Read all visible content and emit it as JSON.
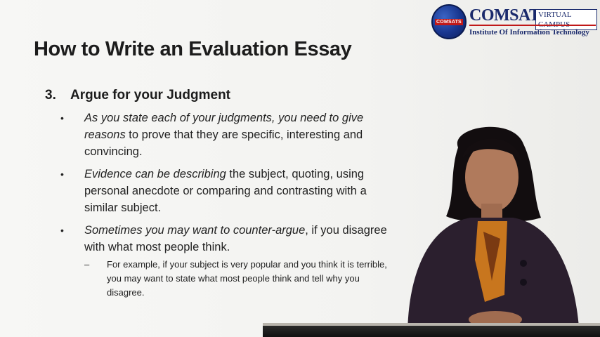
{
  "logo": {
    "emblem_text": "COMSATS",
    "name": "COMSATS",
    "badge": "VIRTUAL CAMPUS",
    "subtitle": "Institute Of Information Technology"
  },
  "slide": {
    "title": "How to Write an Evaluation Essay",
    "heading_number": "3.",
    "heading_text": "Argue for your Judgment",
    "bullets": [
      {
        "italic": "As you state each of your judgments, you need to give reasons",
        "rest": " to prove that they are specific, interesting and convincing."
      },
      {
        "italic": "Evidence can be describing",
        "rest": " the subject, quoting, using personal anecdote or comparing and contrasting with a similar subject."
      },
      {
        "italic": "Sometimes you may want to counter-argue",
        "rest": ", if you disagree with what most people think.",
        "sub": "For example, if your subject is very popular and you think it is terrible, you may want to state what most people think and tell why you disagree."
      }
    ],
    "bullet_symbol": "•",
    "dash_symbol": "–"
  },
  "colors": {
    "logo_blue": "#1a2a6c",
    "logo_red": "#c01818",
    "jacket": "#2b1f2e",
    "scarf": "#c8761e"
  },
  "icons": [
    "comsats-logo-emblem",
    "presenter-video"
  ]
}
